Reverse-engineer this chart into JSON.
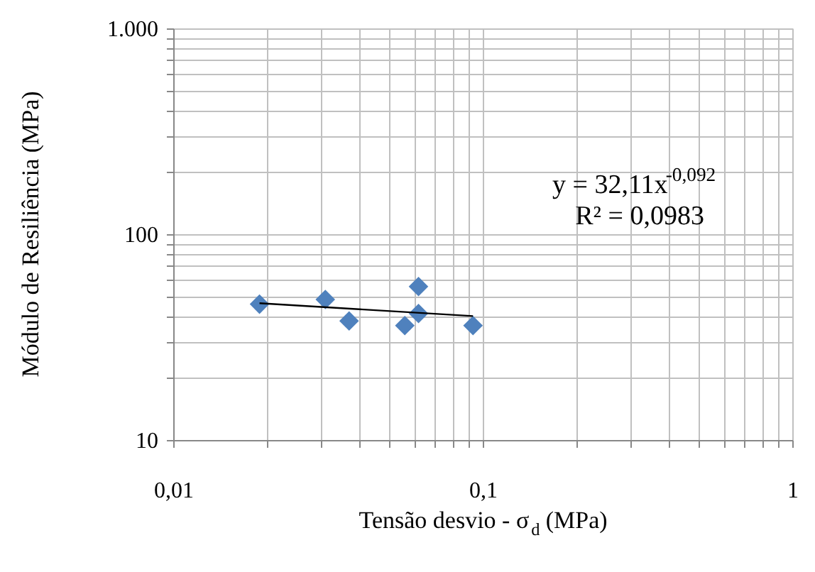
{
  "chart_data": {
    "type": "scatter",
    "xlabel": "Tensão desvio - σ$_{d}$ (MPa)",
    "ylabel": "Módulo de Resiliência (MPa)",
    "log": "xy",
    "grid": true,
    "xlim": [
      0.01,
      1
    ],
    "ylim": [
      10,
      1000
    ],
    "xticks": [
      {
        "value": 0.01,
        "label": "0,01"
      },
      {
        "value": 0.02,
        "label": null
      },
      {
        "value": 0.03,
        "label": null
      },
      {
        "value": 0.04,
        "label": null
      },
      {
        "value": 0.05,
        "label": null
      },
      {
        "value": 0.06,
        "label": null
      },
      {
        "value": 0.07,
        "label": null
      },
      {
        "value": 0.08,
        "label": null
      },
      {
        "value": 0.09,
        "label": null
      },
      {
        "value": 0.1,
        "label": "0,1"
      },
      {
        "value": 0.2,
        "label": null
      },
      {
        "value": 0.3,
        "label": null
      },
      {
        "value": 0.4,
        "label": null
      },
      {
        "value": 0.5,
        "label": null
      },
      {
        "value": 0.6,
        "label": null
      },
      {
        "value": 0.7,
        "label": null
      },
      {
        "value": 0.8,
        "label": null
      },
      {
        "value": 0.9,
        "label": null
      },
      1
    ],
    "yticks": [
      10,
      {
        "value": 20,
        "label": null
      },
      {
        "value": 30,
        "label": null
      },
      {
        "value": 40,
        "label": null
      },
      {
        "value": 50,
        "label": null
      },
      {
        "value": 60,
        "label": null
      },
      {
        "value": 70,
        "label": null
      },
      {
        "value": 80,
        "label": null
      },
      {
        "value": 90,
        "label": null
      },
      100,
      {
        "value": 200,
        "label": null
      },
      {
        "value": 300,
        "label": null
      },
      {
        "value": 400,
        "label": null
      },
      {
        "value": 500,
        "label": null
      },
      {
        "value": 600,
        "label": null
      },
      {
        "value": 700,
        "label": null
      },
      {
        "value": 800,
        "label": null
      },
      {
        "value": 900,
        "label": null
      },
      {
        "value": 1000,
        "label": "1.000"
      }
    ],
    "series": [
      {
        "marker": "diamond",
        "color": "#4f81bd",
        "x": [
          0.019,
          0.031,
          0.037,
          0.056,
          0.062,
          0.062,
          0.093
        ],
        "values": [
          45.7,
          48.2,
          37.9,
          36.0,
          55.7,
          41.2,
          36.0
        ]
      },
      {
        "type": "line",
        "marker": "none",
        "color": "#000000",
        "x": [
          0.019,
          0.093
        ],
        "values": [
          46.2,
          40.0
        ]
      }
    ],
    "annotations": [
      "y = 32,11x$^{-0,092}$",
      "R² = 0,0983"
    ]
  }
}
